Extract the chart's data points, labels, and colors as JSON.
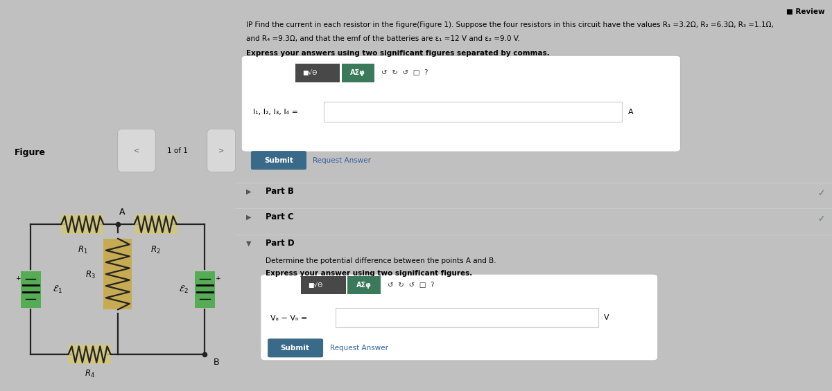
{
  "bg_photo": "#b0b0b0",
  "bg_circuit": "#f0f0f0",
  "bg_right": "#e4e4e4",
  "figure_label": "Figure",
  "page_label": "1 of 1",
  "review_text": "Review",
  "circuit": {
    "resistor_color_h": "#d4c878",
    "resistor_color_v": "#c8a840",
    "battery_color": "#4aaa4a",
    "wire_color": "#222222",
    "R1_label": "$R_1$",
    "R2_label": "$R_2$",
    "R3_label": "$R_3$",
    "R4_label": "$R_4$",
    "E1_label": "$\\mathcal{E}_1$",
    "E2_label": "$\\mathcal{E}_2$",
    "A_label": "A",
    "B_label": "B"
  },
  "problem_text_line1": "IP Find the current in each resistor in the figure(Figure 1). Suppose the four resistors in this circuit have the values $R_1$ =3.2Ω, $R_2$ =6.3Ω, $R_3$ =1.1Ω,",
  "problem_text_line1_plain": "IP Find the current in each resistor in the figure(Figure 1). Suppose the four resistors in this circuit have the values R₁ =3.2Ω, R₂ =6.3Ω, R₃ =1.1Ω,",
  "problem_text_line2_plain": "and R₄ =9.3Ω, and that the emf of the batteries are ε₁ =12 V and ε₂ =9.0 V.",
  "express_text1": "Express your answers using two significant figures separated by commas.",
  "input_label1": "$I_1, I_2, I_3, I_4$ =",
  "input_label1_plain": "I₁, I₂, I₃, I₄ =",
  "unit1": "A",
  "submit_btn": "Submit",
  "request_answer": "Request Answer",
  "part_b": "Part B",
  "part_c": "Part C",
  "part_d": "Part D",
  "part_d_text1": "Determine the potential difference between the points A and B.",
  "part_d_text2": "Express your answer using two significant figures.",
  "input_label2_plain": "Vₐ − Vₙ =",
  "unit2": "V",
  "checkmark_color": "#4a8a4a",
  "submit_color": "#3a6a8a",
  "toolbar_dark": "#4a4a4a",
  "toolbar_green": "#3a7a5a",
  "separator_color": "#cccccc"
}
